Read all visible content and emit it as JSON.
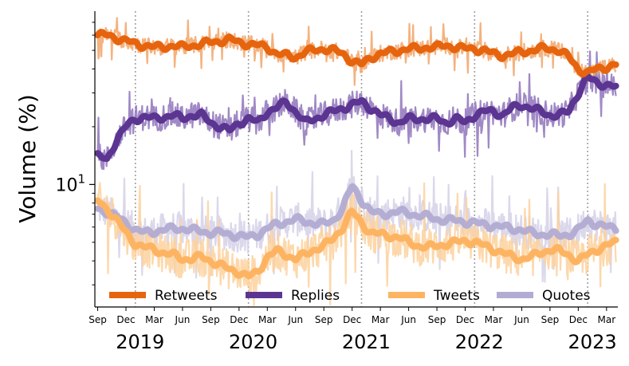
{
  "chart_data": {
    "type": "line",
    "ylabel": "Volume (%)",
    "yscale": "log",
    "ylim": [
      2.3,
      80
    ],
    "y_ticks": [
      {
        "value": 10,
        "base": "10",
        "exp": "1"
      }
    ],
    "x_month_ticks": [
      "Sep",
      "Dec",
      "Mar",
      "Jun",
      "Sep",
      "Dec",
      "Mar",
      "Jun",
      "Sep",
      "Dec",
      "Mar",
      "Jun",
      "Sep",
      "Dec",
      "Mar",
      "Jun",
      "Sep",
      "Dec",
      "Mar"
    ],
    "x_month_index": [
      0,
      3,
      6,
      9,
      12,
      15,
      18,
      21,
      24,
      27,
      30,
      33,
      36,
      39,
      42,
      45,
      48,
      51,
      54
    ],
    "years": [
      "2019",
      "2020",
      "2021",
      "2022",
      "2023"
    ],
    "year_month_index": [
      4.5,
      16.5,
      28.5,
      40.5,
      52.5
    ],
    "vlines_month_index": [
      4,
      16,
      28,
      40,
      52
    ],
    "x_month_range": [
      -0.3,
      55.2
    ],
    "series": [
      {
        "name": "Retweets",
        "color": "#e6640e",
        "light": "#f2a468",
        "noise": 0.1,
        "x": [
          0,
          1,
          2,
          3,
          4,
          5,
          6,
          7,
          8,
          9,
          10,
          11,
          12,
          13,
          14,
          15,
          16,
          17,
          18,
          19,
          20,
          21,
          22,
          23,
          24,
          25,
          26,
          27,
          28,
          29,
          30,
          31,
          32,
          33,
          34,
          35,
          36,
          37,
          38,
          39,
          40,
          41,
          42,
          43,
          44,
          45,
          46,
          47,
          48,
          49,
          50,
          51,
          52,
          53,
          54,
          55
        ],
        "values": [
          60,
          60,
          58,
          56,
          54,
          53,
          52,
          52,
          53,
          52,
          53,
          54,
          55,
          56,
          57,
          55,
          54,
          53,
          52,
          48,
          47,
          46,
          49,
          50,
          51,
          50,
          48,
          44,
          42,
          46,
          48,
          49,
          50,
          51,
          51,
          52,
          52,
          53,
          52,
          51,
          51,
          50,
          48,
          47,
          48,
          49,
          50,
          51,
          51,
          50,
          46,
          40,
          38,
          40,
          41,
          42
        ]
      },
      {
        "name": "Replies",
        "color": "#5b3591",
        "light": "#8f74bb",
        "noise": 0.16,
        "x": [
          0,
          1,
          2,
          3,
          4,
          5,
          6,
          7,
          8,
          9,
          10,
          11,
          12,
          13,
          14,
          15,
          16,
          17,
          18,
          19,
          20,
          21,
          22,
          23,
          24,
          25,
          26,
          27,
          28,
          29,
          30,
          31,
          32,
          33,
          34,
          35,
          36,
          37,
          38,
          39,
          40,
          41,
          42,
          43,
          44,
          45,
          46,
          47,
          48,
          49,
          50,
          51,
          52,
          53,
          54,
          55
        ],
        "values": [
          14,
          13.5,
          17,
          20,
          22,
          22.5,
          22,
          22.5,
          23,
          22,
          23,
          23,
          21,
          20,
          19,
          21,
          22,
          21,
          24,
          25,
          27,
          24,
          21,
          22,
          23,
          24,
          25,
          26,
          27,
          25,
          23,
          22,
          21,
          22,
          22,
          22,
          22,
          21,
          22,
          21,
          23,
          24,
          24,
          23,
          25,
          26,
          25,
          24,
          23,
          23,
          24,
          30,
          36,
          34,
          33,
          32
        ]
      },
      {
        "name": "Tweets",
        "color": "#fdb462",
        "light": "#fdd19c",
        "noise": 0.24,
        "x": [
          0,
          1,
          2,
          3,
          4,
          5,
          6,
          7,
          8,
          9,
          10,
          11,
          12,
          13,
          14,
          15,
          16,
          17,
          18,
          19,
          20,
          21,
          22,
          23,
          24,
          25,
          26,
          27,
          28,
          29,
          30,
          31,
          32,
          33,
          34,
          35,
          36,
          37,
          38,
          39,
          40,
          41,
          42,
          43,
          44,
          45,
          46,
          47,
          48,
          49,
          50,
          51,
          52,
          53,
          54,
          55
        ],
        "values": [
          8.2,
          7.5,
          6.5,
          5.6,
          4.9,
          4.7,
          4.6,
          4.4,
          4.3,
          4.1,
          4.1,
          4.2,
          4.0,
          3.8,
          3.6,
          3.5,
          3.3,
          3.5,
          4.2,
          4.5,
          4.3,
          4.1,
          4.3,
          4.6,
          4.8,
          5.2,
          6.0,
          7.2,
          6.3,
          5.6,
          5.5,
          5.4,
          5.3,
          5.0,
          4.8,
          4.7,
          4.8,
          4.9,
          5.0,
          5.1,
          5.0,
          4.8,
          4.6,
          4.4,
          4.2,
          4.1,
          4.2,
          4.4,
          4.6,
          4.5,
          4.3,
          4.0,
          4.3,
          4.6,
          4.8,
          5.0
        ]
      },
      {
        "name": "Quotes",
        "color": "#b2abd2",
        "light": "#d5d1e8",
        "noise": 0.2,
        "x": [
          0,
          1,
          2,
          3,
          4,
          5,
          6,
          7,
          8,
          9,
          10,
          11,
          12,
          13,
          14,
          15,
          16,
          17,
          18,
          19,
          20,
          21,
          22,
          23,
          24,
          25,
          26,
          27,
          28,
          29,
          30,
          31,
          32,
          33,
          34,
          35,
          36,
          37,
          38,
          39,
          40,
          41,
          42,
          43,
          44,
          45,
          46,
          47,
          48,
          49,
          50,
          51,
          52,
          53,
          54,
          55
        ],
        "values": [
          7.5,
          7.2,
          6.8,
          6.3,
          5.8,
          5.6,
          5.7,
          5.8,
          5.9,
          5.9,
          5.8,
          5.7,
          5.6,
          5.6,
          5.5,
          5.4,
          5.3,
          5.5,
          5.9,
          6.2,
          6.4,
          6.6,
          6.4,
          6.3,
          6.2,
          6.5,
          7.5,
          9.8,
          8.3,
          7.2,
          7.0,
          7.1,
          7.2,
          7.1,
          6.9,
          6.8,
          6.6,
          6.5,
          6.5,
          6.4,
          6.3,
          6.2,
          6.1,
          6.0,
          5.9,
          5.8,
          5.6,
          5.5,
          5.5,
          5.4,
          5.5,
          5.8,
          6.5,
          6.2,
          6.0,
          5.9
        ]
      }
    ],
    "legend": {
      "placement": "bottom",
      "labels": [
        "Retweets",
        "Replies",
        "Tweets",
        "Quotes"
      ]
    }
  }
}
